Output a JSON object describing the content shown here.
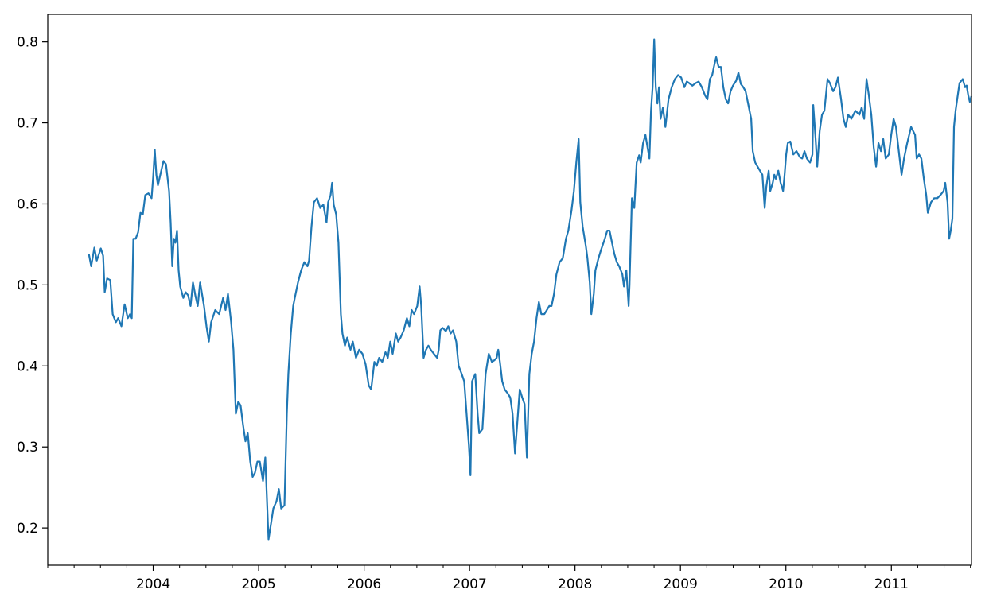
{
  "chart_data": {
    "type": "line",
    "title": "",
    "xlabel": "",
    "ylabel": "",
    "xlim": [
      2003.0,
      2011.76
    ],
    "ylim": [
      0.154,
      0.834
    ],
    "grid": false,
    "line_color": "#1f77b4",
    "xticks": [
      {
        "value": 2004,
        "label": "2004"
      },
      {
        "value": 2005,
        "label": "2005"
      },
      {
        "value": 2006,
        "label": "2006"
      },
      {
        "value": 2007,
        "label": "2007"
      },
      {
        "value": 2008,
        "label": "2008"
      },
      {
        "value": 2009,
        "label": "2009"
      },
      {
        "value": 2010,
        "label": "2010"
      },
      {
        "value": 2011,
        "label": "2011"
      }
    ],
    "x_minor_ticks": "quarterly",
    "yticks": [
      {
        "value": 0.2,
        "label": "0.2"
      },
      {
        "value": 0.3,
        "label": "0.3"
      },
      {
        "value": 0.4,
        "label": "0.4"
      },
      {
        "value": 0.5,
        "label": "0.5"
      },
      {
        "value": 0.6,
        "label": "0.6"
      },
      {
        "value": 0.7,
        "label": "0.7"
      },
      {
        "value": 0.8,
        "label": "0.8"
      }
    ],
    "series": [
      {
        "x": [
          2003.39,
          2003.412,
          2003.442,
          2003.465,
          2003.503,
          2003.525,
          2003.54,
          2003.563,
          2003.593,
          2003.616,
          2003.646,
          2003.668,
          2003.699,
          2003.729,
          2003.759,
          2003.781,
          2003.797,
          2003.812,
          2003.834,
          2003.857,
          2003.879,
          2003.902,
          2003.925,
          2003.955,
          2003.985,
          2004.0,
          2004.015,
          2004.03,
          2004.045,
          2004.068,
          2004.098,
          2004.121,
          2004.151,
          2004.166,
          2004.181,
          2004.196,
          2004.211,
          2004.226,
          2004.241,
          2004.256,
          2004.286,
          2004.309,
          2004.332,
          2004.354,
          2004.377,
          2004.4,
          2004.422,
          2004.445,
          2004.482,
          2004.505,
          2004.528,
          2004.55,
          2004.588,
          2004.626,
          2004.663,
          2004.686,
          2004.709,
          2004.739,
          2004.761,
          2004.784,
          2004.807,
          2004.829,
          2004.852,
          2004.875,
          2004.897,
          2004.92,
          2004.943,
          2004.965,
          2004.988,
          2005.011,
          2005.041,
          2005.063,
          2005.094,
          2005.116,
          2005.139,
          2005.169,
          2005.192,
          2005.214,
          2005.245,
          2005.267,
          2005.282,
          2005.305,
          2005.328,
          2005.343,
          2005.373,
          2005.403,
          2005.433,
          2005.463,
          2005.478,
          2005.501,
          2005.524,
          2005.554,
          2005.584,
          2005.614,
          2005.644,
          2005.659,
          2005.682,
          2005.697,
          2005.712,
          2005.735,
          2005.757,
          2005.78,
          2005.795,
          2005.818,
          2005.84,
          2005.871,
          2005.893,
          2005.923,
          2005.953,
          2005.984,
          2006.014,
          2006.044,
          2006.067,
          2006.097,
          2006.12,
          2006.142,
          2006.172,
          2006.203,
          2006.225,
          2006.248,
          2006.271,
          2006.301,
          2006.323,
          2006.346,
          2006.376,
          2006.406,
          2006.429,
          2006.451,
          2006.474,
          2006.504,
          2006.527,
          2006.542,
          2006.564,
          2006.587,
          2006.61,
          2006.632,
          2006.662,
          2006.693,
          2006.708,
          2006.723,
          2006.745,
          2006.775,
          2006.798,
          2006.821,
          2006.843,
          2006.874,
          2006.896,
          2006.926,
          2006.949,
          2006.972,
          2006.994,
          2007.009,
          2007.024,
          2007.054,
          2007.077,
          2007.092,
          2007.122,
          2007.152,
          2007.182,
          2007.212,
          2007.235,
          2007.257,
          2007.272,
          2007.288,
          2007.31,
          2007.333,
          2007.363,
          2007.386,
          2007.408,
          2007.431,
          2007.454,
          2007.476,
          2007.499,
          2007.522,
          2007.544,
          2007.567,
          2007.59,
          2007.612,
          2007.635,
          2007.658,
          2007.68,
          2007.71,
          2007.733,
          2007.756,
          2007.778,
          2007.801,
          2007.824,
          2007.854,
          2007.884,
          2007.914,
          2007.937,
          2007.967,
          2007.99,
          2008.012,
          2008.035,
          2008.05,
          2008.073,
          2008.103,
          2008.118,
          2008.14,
          2008.155,
          2008.178,
          2008.193,
          2008.223,
          2008.246,
          2008.283,
          2008.306,
          2008.328,
          2008.351,
          2008.374,
          2008.396,
          2008.419,
          2008.449,
          2008.464,
          2008.487,
          2008.509,
          2008.517,
          2008.54,
          2008.562,
          2008.585,
          2008.608,
          2008.623,
          2008.645,
          2008.668,
          2008.691,
          2008.706,
          2008.721,
          2008.736,
          2008.751,
          2008.766,
          2008.781,
          2008.796,
          2008.811,
          2008.834,
          2008.857,
          2008.887,
          2008.917,
          2008.947,
          2008.977,
          2009.007,
          2009.037,
          2009.06,
          2009.083,
          2009.113,
          2009.143,
          2009.173,
          2009.203,
          2009.233,
          2009.256,
          2009.279,
          2009.301,
          2009.324,
          2009.339,
          2009.362,
          2009.384,
          2009.407,
          2009.43,
          2009.452,
          2009.475,
          2009.498,
          2009.528,
          2009.55,
          2009.573,
          2009.596,
          2009.618,
          2009.641,
          2009.671,
          2009.686,
          2009.709,
          2009.731,
          2009.754,
          2009.777,
          2009.799,
          2009.814,
          2009.837,
          2009.852,
          2009.875,
          2009.89,
          2009.905,
          2009.928,
          2009.95,
          2009.973,
          2009.988,
          2010.003,
          2010.018,
          2010.041,
          2010.071,
          2010.101,
          2010.131,
          2010.154,
          2010.176,
          2010.199,
          2010.229,
          2010.252,
          2010.259,
          2010.282,
          2010.297,
          2010.32,
          2010.342,
          2010.365,
          2010.395,
          2010.418,
          2010.448,
          2010.47,
          2010.493,
          2010.523,
          2010.546,
          2010.568,
          2010.591,
          2010.621,
          2010.659,
          2010.697,
          2010.719,
          2010.742,
          2010.765,
          2010.787,
          2010.81,
          2010.833,
          2010.855,
          2010.878,
          2010.901,
          2010.923,
          2010.946,
          2010.976,
          2010.999,
          2011.021,
          2011.044,
          2011.074,
          2011.097,
          2011.12,
          2011.15,
          2011.187,
          2011.225,
          2011.24,
          2011.263,
          2011.285,
          2011.308,
          2011.331,
          2011.346,
          2011.376,
          2011.406,
          2011.436,
          2011.466,
          2011.496,
          2011.511,
          2011.533,
          2011.548,
          2011.563,
          2011.579,
          2011.594,
          2011.609,
          2011.624,
          2011.646,
          2011.676,
          2011.699,
          2011.714,
          2011.729,
          2011.744,
          2011.759
        ],
        "y": [
          0.538,
          0.523,
          0.546,
          0.53,
          0.545,
          0.536,
          0.491,
          0.508,
          0.506,
          0.464,
          0.454,
          0.459,
          0.449,
          0.476,
          0.459,
          0.464,
          0.459,
          0.557,
          0.557,
          0.565,
          0.589,
          0.587,
          0.611,
          0.613,
          0.607,
          0.633,
          0.667,
          0.636,
          0.623,
          0.636,
          0.653,
          0.649,
          0.616,
          0.577,
          0.523,
          0.557,
          0.552,
          0.567,
          0.518,
          0.498,
          0.484,
          0.491,
          0.487,
          0.474,
          0.503,
          0.487,
          0.474,
          0.503,
          0.474,
          0.449,
          0.43,
          0.454,
          0.469,
          0.464,
          0.484,
          0.469,
          0.489,
          0.454,
          0.42,
          0.341,
          0.356,
          0.351,
          0.327,
          0.307,
          0.317,
          0.282,
          0.263,
          0.268,
          0.282,
          0.282,
          0.258,
          0.287,
          0.186,
          0.204,
          0.224,
          0.233,
          0.248,
          0.224,
          0.228,
          0.341,
          0.39,
          0.44,
          0.474,
          0.484,
          0.503,
          0.518,
          0.528,
          0.523,
          0.53,
          0.572,
          0.602,
          0.607,
          0.595,
          0.599,
          0.577,
          0.602,
          0.611,
          0.626,
          0.599,
          0.587,
          0.552,
          0.464,
          0.44,
          0.425,
          0.435,
          0.42,
          0.43,
          0.41,
          0.42,
          0.415,
          0.402,
          0.376,
          0.371,
          0.405,
          0.4,
          0.41,
          0.405,
          0.417,
          0.41,
          0.43,
          0.415,
          0.44,
          0.43,
          0.435,
          0.444,
          0.459,
          0.449,
          0.469,
          0.464,
          0.474,
          0.498,
          0.474,
          0.41,
          0.42,
          0.425,
          0.42,
          0.415,
          0.41,
          0.42,
          0.444,
          0.447,
          0.443,
          0.449,
          0.44,
          0.444,
          0.43,
          0.4,
          0.39,
          0.381,
          0.341,
          0.302,
          0.265,
          0.381,
          0.39,
          0.341,
          0.317,
          0.322,
          0.39,
          0.415,
          0.405,
          0.407,
          0.41,
          0.42,
          0.405,
          0.381,
          0.371,
          0.366,
          0.361,
          0.341,
          0.292,
          0.332,
          0.371,
          0.361,
          0.353,
          0.287,
          0.39,
          0.415,
          0.43,
          0.459,
          0.479,
          0.464,
          0.464,
          0.469,
          0.474,
          0.474,
          0.489,
          0.513,
          0.528,
          0.533,
          0.557,
          0.567,
          0.592,
          0.616,
          0.651,
          0.68,
          0.602,
          0.572,
          0.548,
          0.533,
          0.503,
          0.464,
          0.489,
          0.518,
          0.533,
          0.543,
          0.557,
          0.567,
          0.567,
          0.552,
          0.538,
          0.528,
          0.523,
          0.513,
          0.498,
          0.518,
          0.474,
          0.5,
          0.607,
          0.595,
          0.651,
          0.66,
          0.651,
          0.675,
          0.685,
          0.667,
          0.656,
          0.715,
          0.744,
          0.803,
          0.744,
          0.724,
          0.744,
          0.705,
          0.719,
          0.695,
          0.729,
          0.744,
          0.754,
          0.759,
          0.756,
          0.744,
          0.751,
          0.749,
          0.746,
          0.749,
          0.751,
          0.744,
          0.734,
          0.729,
          0.754,
          0.759,
          0.773,
          0.781,
          0.769,
          0.769,
          0.744,
          0.729,
          0.724,
          0.739,
          0.746,
          0.752,
          0.762,
          0.748,
          0.744,
          0.739,
          0.724,
          0.705,
          0.665,
          0.651,
          0.646,
          0.641,
          0.636,
          0.595,
          0.621,
          0.641,
          0.616,
          0.626,
          0.636,
          0.631,
          0.641,
          0.626,
          0.616,
          0.636,
          0.661,
          0.675,
          0.677,
          0.661,
          0.665,
          0.658,
          0.656,
          0.665,
          0.656,
          0.651,
          0.661,
          0.722,
          0.68,
          0.646,
          0.69,
          0.71,
          0.715,
          0.754,
          0.749,
          0.739,
          0.744,
          0.756,
          0.729,
          0.705,
          0.695,
          0.71,
          0.705,
          0.715,
          0.71,
          0.719,
          0.705,
          0.754,
          0.734,
          0.71,
          0.67,
          0.646,
          0.675,
          0.665,
          0.68,
          0.656,
          0.661,
          0.685,
          0.705,
          0.695,
          0.661,
          0.636,
          0.656,
          0.675,
          0.695,
          0.685,
          0.656,
          0.661,
          0.656,
          0.631,
          0.611,
          0.589,
          0.602,
          0.607,
          0.607,
          0.611,
          0.616,
          0.626,
          0.602,
          0.557,
          0.567,
          0.582,
          0.695,
          0.715,
          0.729,
          0.749,
          0.754,
          0.744,
          0.746,
          0.734,
          0.726,
          0.733
        ]
      }
    ]
  }
}
